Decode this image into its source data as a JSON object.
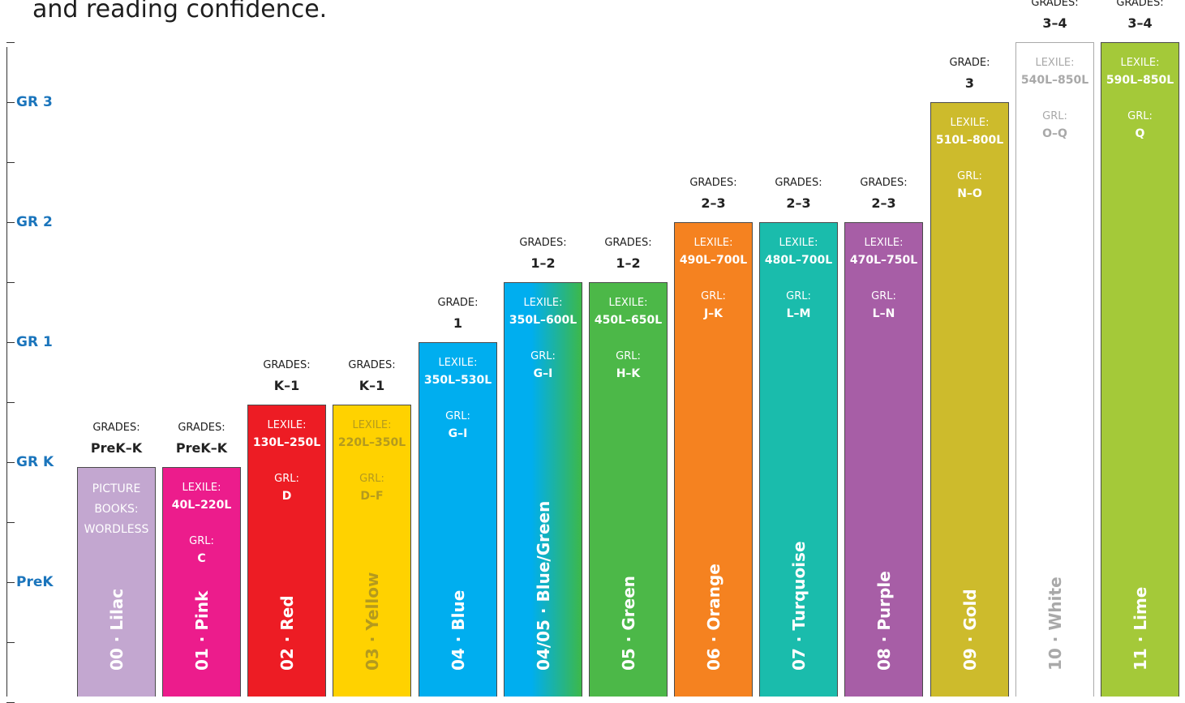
{
  "intro_text": "and reading confidence.",
  "colors": {
    "axis": "#1b75bc",
    "text": "#222222"
  },
  "chart_data": {
    "type": "bar",
    "title": "",
    "xlabel": "",
    "ylabel": "",
    "y_ticks": [
      {
        "label": "PreK",
        "value": 0
      },
      {
        "label": "GR K",
        "value": 1
      },
      {
        "label": "GR 1",
        "value": 2
      },
      {
        "label": "GR 2",
        "value": 3
      },
      {
        "label": "GR 3",
        "value": 4
      }
    ],
    "ylim": [
      -1,
      4.9
    ],
    "bar_captions": {
      "lexile": "LEXILE:",
      "grl": "GRL:"
    },
    "bars": [
      {
        "name": "00 · Lilac",
        "value": 0.96,
        "color": "#c3a7d0",
        "text_color": "#ffffff",
        "grades_caption": "GRADES:",
        "grades": "PreK–K",
        "lexile": "",
        "grl": "",
        "picture_books": "PICTURE\nBOOKS:\nWORDLESS"
      },
      {
        "name": "01 · Pink",
        "value": 0.96,
        "color": "#ec1c8c",
        "text_color": "#ffffff",
        "grades_caption": "GRADES:",
        "grades": "PreK–K",
        "lexile": "40L–220L",
        "grl": "C"
      },
      {
        "name": "02 · Red",
        "value": 1.48,
        "color": "#ed1c24",
        "text_color": "#ffffff",
        "grades_caption": "GRADES:",
        "grades": "K–1",
        "lexile": "130L–250L",
        "grl": "D"
      },
      {
        "name": "03 · Yellow",
        "value": 1.48,
        "color": "#ffd200",
        "text_color": "#b49a1e",
        "grades_caption": "GRADES:",
        "grades": "K–1",
        "lexile": "220L–350L",
        "grl": "D–F"
      },
      {
        "name": "04 · Blue",
        "value": 2.0,
        "color": "#00aeef",
        "text_color": "#ffffff",
        "grades_caption": "GRADE:",
        "grades": "1",
        "lexile": "350L–530L",
        "grl": "G–I"
      },
      {
        "name": "04/05 · Blue/Green",
        "value": 2.5,
        "color": "#00aeef",
        "color_end": "#3cb84a",
        "text_color": "#ffffff",
        "grades_caption": "GRADES:",
        "grades": "1–2",
        "lexile": "350L–600L",
        "grl": "G–I"
      },
      {
        "name": "05 · Green",
        "value": 2.5,
        "color": "#4cb848",
        "text_color": "#ffffff",
        "grades_caption": "GRADES:",
        "grades": "1–2",
        "lexile": "450L–650L",
        "grl": "H–K"
      },
      {
        "name": "06 · Orange",
        "value": 3.0,
        "color": "#f58220",
        "text_color": "#ffffff",
        "grades_caption": "GRADES:",
        "grades": "2–3",
        "lexile": "490L–700L",
        "grl": "J–K"
      },
      {
        "name": "07 · Turquoise",
        "value": 3.0,
        "color": "#1abcac",
        "text_color": "#ffffff",
        "grades_caption": "GRADES:",
        "grades": "2–3",
        "lexile": "480L–700L",
        "grl": "L–M"
      },
      {
        "name": "08 · Purple",
        "value": 3.0,
        "color": "#a75ea6",
        "text_color": "#ffffff",
        "grades_caption": "GRADES:",
        "grades": "2–3",
        "lexile": "470L–750L",
        "grl": "L–N"
      },
      {
        "name": "09 · Gold",
        "value": 4.0,
        "color": "#cdbb2c",
        "text_color": "#ffffff",
        "grades_caption": "GRADE:",
        "grades": "3",
        "lexile": "510L–800L",
        "grl": "N–O"
      },
      {
        "name": "10 · White",
        "value": 4.5,
        "color": "#ffffff",
        "text_color": "#a9a9a9",
        "grades_caption": "GRADES:",
        "grades": "3–4",
        "lexile": "540L–850L",
        "grl": "O–Q"
      },
      {
        "name": "11 · Lime",
        "value": 4.5,
        "color": "#a4c939",
        "text_color": "#ffffff",
        "grades_caption": "GRADES:",
        "grades": "3–4",
        "lexile": "590L–850L",
        "grl": "Q"
      }
    ]
  }
}
